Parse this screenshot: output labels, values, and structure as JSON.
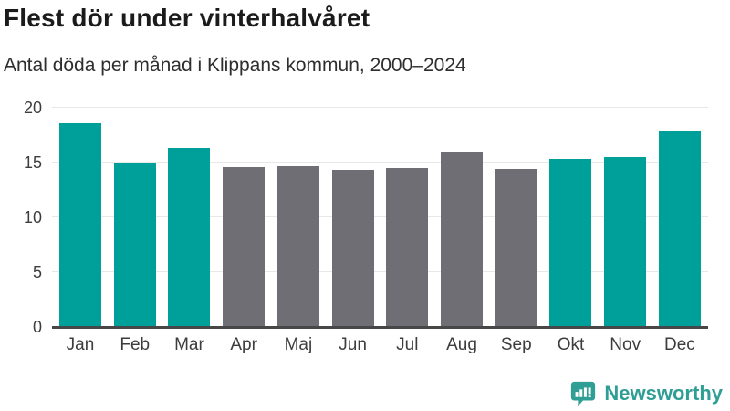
{
  "header": {
    "title": "Flest dör under vinterhalvåret",
    "subtitle": "Antal döda per månad i Klippans kommun, 2000–2024"
  },
  "chart_data": {
    "type": "bar",
    "title": "Flest dör under vinterhalvåret",
    "subtitle": "Antal döda per månad i Klippans kommun, 2000–2024",
    "categories": [
      "Jan",
      "Feb",
      "Mar",
      "Apr",
      "Maj",
      "Jun",
      "Jul",
      "Aug",
      "Sep",
      "Okt",
      "Nov",
      "Dec"
    ],
    "values": [
      18.6,
      14.9,
      16.3,
      14.6,
      14.7,
      14.3,
      14.5,
      16.0,
      14.4,
      15.3,
      15.5,
      17.9
    ],
    "highlighted": [
      true,
      true,
      true,
      false,
      false,
      false,
      false,
      false,
      false,
      true,
      true,
      true
    ],
    "colors": {
      "highlight": "#00a09a",
      "default": "#6e6e74",
      "axis_text": "#3d3d3d",
      "gridline": "#e8e8e8",
      "baseline": "#474747"
    },
    "xlabel": "",
    "ylabel": "",
    "ylim": [
      0,
      20
    ],
    "yticks": [
      0,
      5,
      10,
      15,
      20
    ],
    "grid": true,
    "legend": false
  },
  "footer": {
    "brand": "Newsworthy",
    "brand_color": "#2f9e94",
    "logo_icon": "speech-bubble-bar-chart-icon"
  }
}
